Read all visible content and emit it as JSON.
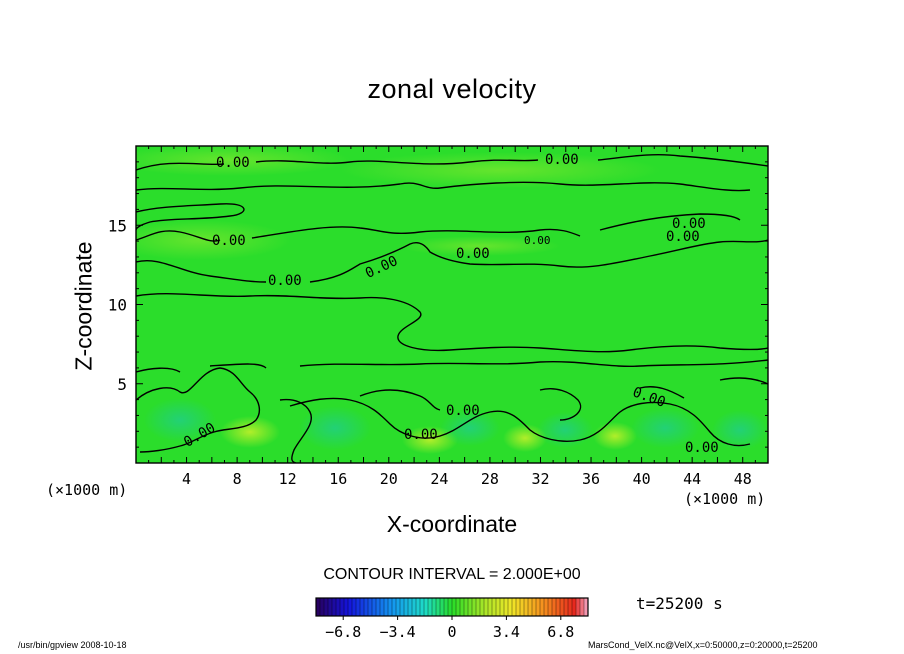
{
  "chart_data": {
    "type": "contour",
    "title": "zonal velocity",
    "xlabel": "X-coordinate",
    "ylabel": "Z-coordinate",
    "x_unit": "(×1000 m)",
    "xlim": [
      0,
      50
    ],
    "ylim": [
      0,
      20
    ],
    "x_ticks": [
      4,
      8,
      12,
      16,
      20,
      24,
      28,
      32,
      36,
      40,
      44,
      48
    ],
    "y_ticks": [
      5,
      10,
      15
    ],
    "contour_labels": [
      "0.00",
      "0.00",
      "0.00",
      "0.00",
      "0.00",
      "0.00",
      "0.00",
      "0.00",
      "0.00",
      "0.00",
      "0.00",
      "0.00",
      "0.00",
      "0.00"
    ],
    "contour_interval": "CONTOUR INTERVAL = 2.000E+00",
    "colorbar": {
      "min": -8.5,
      "max": 8.5,
      "ticks": [
        "−6.8",
        "−3.4",
        "0",
        "3.4",
        "6.8"
      ],
      "tick_values": [
        -6.8,
        -3.4,
        0,
        3.4,
        6.8
      ]
    },
    "time": "t=25200 s",
    "grid": false
  },
  "footer": {
    "left": "/usr/bin/gpview   2008-10-18",
    "right": "MarsCond_VelX.nc@VelX,x=0:50000,z=0:20000,t=25200"
  },
  "colors": {
    "field_background": "#2bdd2b",
    "contour_line": "#000000"
  }
}
